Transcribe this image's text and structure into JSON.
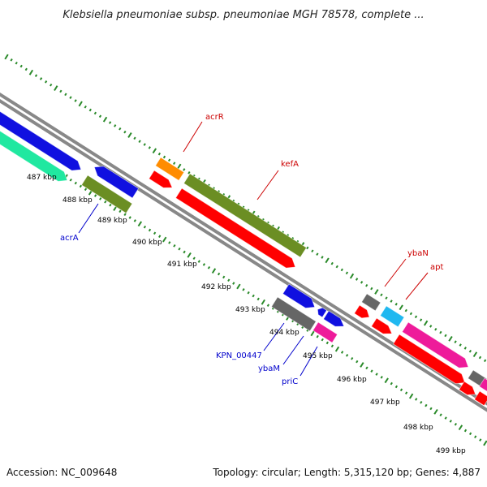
{
  "title": "Klebsiella pneumoniae subsp. pneumoniae MGH 78578, complete ...",
  "footer": {
    "accession": "Accession: NC_009648",
    "summary": "Topology: circular; Length: 5,315,120 bp; Genes: 4,887"
  },
  "kbp_ticks": [
    "487 kbp",
    "488 kbp",
    "489 kbp",
    "490 kbp",
    "491 kbp",
    "492 kbp",
    "493 kbp",
    "494 kbp",
    "495 kbp",
    "496 kbp",
    "497 kbp",
    "498 kbp",
    "499 kbp"
  ],
  "gene_labels": [
    {
      "text": "acrR",
      "strand": "forward"
    },
    {
      "text": "kefA",
      "strand": "forward"
    },
    {
      "text": "ybaN",
      "strand": "forward"
    },
    {
      "text": "apt",
      "strand": "forward"
    },
    {
      "text": "acrA",
      "strand": "reverse"
    },
    {
      "text": "KPN_00447",
      "strand": "reverse"
    },
    {
      "text": "ybaM",
      "strand": "reverse"
    },
    {
      "text": "priC",
      "strand": "reverse"
    }
  ],
  "colors": {
    "forward_label": "#cc0000",
    "reverse_label": "#0000cc",
    "backbone": "#888888",
    "tick_marks": "#2a8a2a",
    "red_feature": "#ff0000",
    "blue_feature": "#1010e0",
    "olive_feature": "#6b8e23",
    "teal_feature": "#20e8a0",
    "orange_feature": "#ff8c00",
    "gray_feature": "#666666",
    "cyan_feature": "#20b8f0",
    "magenta_feature": "#ee1b9a"
  }
}
